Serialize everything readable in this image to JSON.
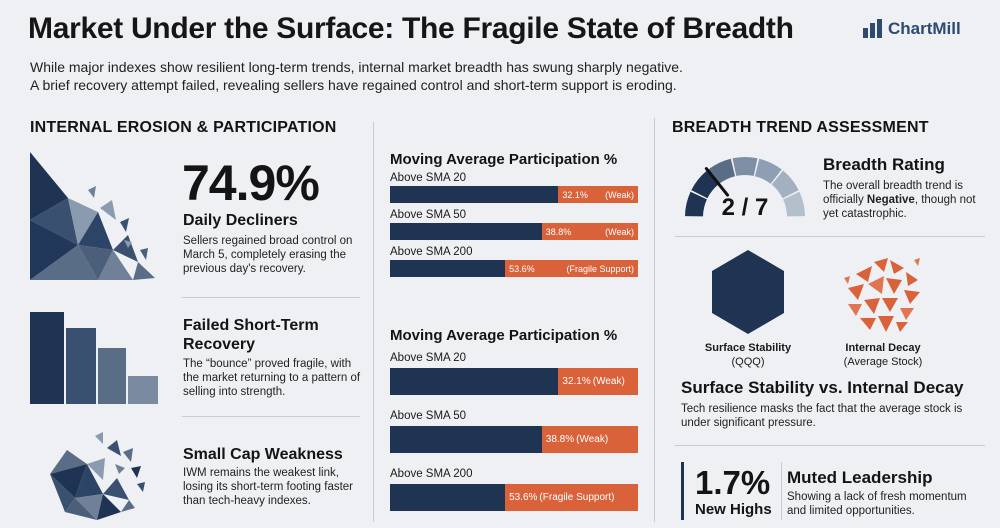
{
  "header": {
    "title": "Market Under the Surface: The Fragile State of Breadth",
    "subtitle_line1": "While major indexes show resilient long-term trends, internal market breadth has swung sharply negative.",
    "subtitle_line2": "A brief recovery attempt failed, revealing sellers have regained control and short-term support is eroding.",
    "logo_text": "ChartMill"
  },
  "left": {
    "section_title": "INTERNAL EROSION & PARTICIPATION",
    "decliners": {
      "value": "74.9%",
      "label": "Daily Decliners",
      "desc": "Sellers regained broad control on March 5, completely erasing the previous day's recovery."
    },
    "recovery": {
      "title_line1": "Failed Short-Term",
      "title_line2": "Recovery",
      "desc": "The “bounce” proved fragile, with the market returning to a pattern of selling into strength."
    },
    "smallcap": {
      "title": "Small Cap Weakness",
      "desc": "IWM remains the weakest link, losing its short-term footing faster than tech-heavy indexes."
    }
  },
  "middle": {
    "chart1": {
      "title": "Moving Average Participation %",
      "bars": [
        {
          "label": "Above SMA 20",
          "value": 32.1,
          "value_text": "32.1%",
          "tag": "(Weak)"
        },
        {
          "label": "Above SMA 50",
          "value": 38.8,
          "value_text": "38.8%",
          "tag": "(Weak)"
        },
        {
          "label": "Above SMA 200",
          "value": 53.6,
          "value_text": "53.6%",
          "tag": "(Fragile Support)"
        }
      ]
    },
    "chart2": {
      "title": "Moving Average Participation %",
      "bars": [
        {
          "label": "Above SMA 20",
          "value": 32.1,
          "value_text": "32.1%",
          "tag": "(Weak)"
        },
        {
          "label": "Above SMA 50",
          "value": 38.8,
          "value_text": "38.8%",
          "tag": "(Weak)"
        },
        {
          "label": "Above SMA 200",
          "value": 53.6,
          "value_text": "53.6%",
          "tag": "(Fragile Support)"
        }
      ]
    }
  },
  "right": {
    "section_title": "BREADTH TREND ASSESSMENT",
    "rating": {
      "score_text": "2 / 7",
      "score": 2,
      "max": 7,
      "title": "Breadth Rating",
      "desc_prefix": "The overall breadth trend is officially ",
      "desc_bold": "Negative",
      "desc_suffix": ", though not yet catastrophic."
    },
    "shapes": {
      "surface_line1": "Surface Stability",
      "surface_line2": "(QQQ)",
      "decay_line1": "Internal Decay",
      "decay_line2": "(Average Stock)"
    },
    "comparison": {
      "title": "Surface Stability vs. Internal Decay",
      "desc": "Tech resilience masks the fact that the average stock is under significant pressure."
    },
    "leadership": {
      "value": "1.7%",
      "label": "New Highs",
      "title": "Muted Leadership",
      "desc": "Showing a lack of fresh momentum and limited opportunities."
    }
  },
  "colors": {
    "navy": "#1f3352",
    "orange": "#d9623b",
    "gray": "#5a6d86"
  }
}
